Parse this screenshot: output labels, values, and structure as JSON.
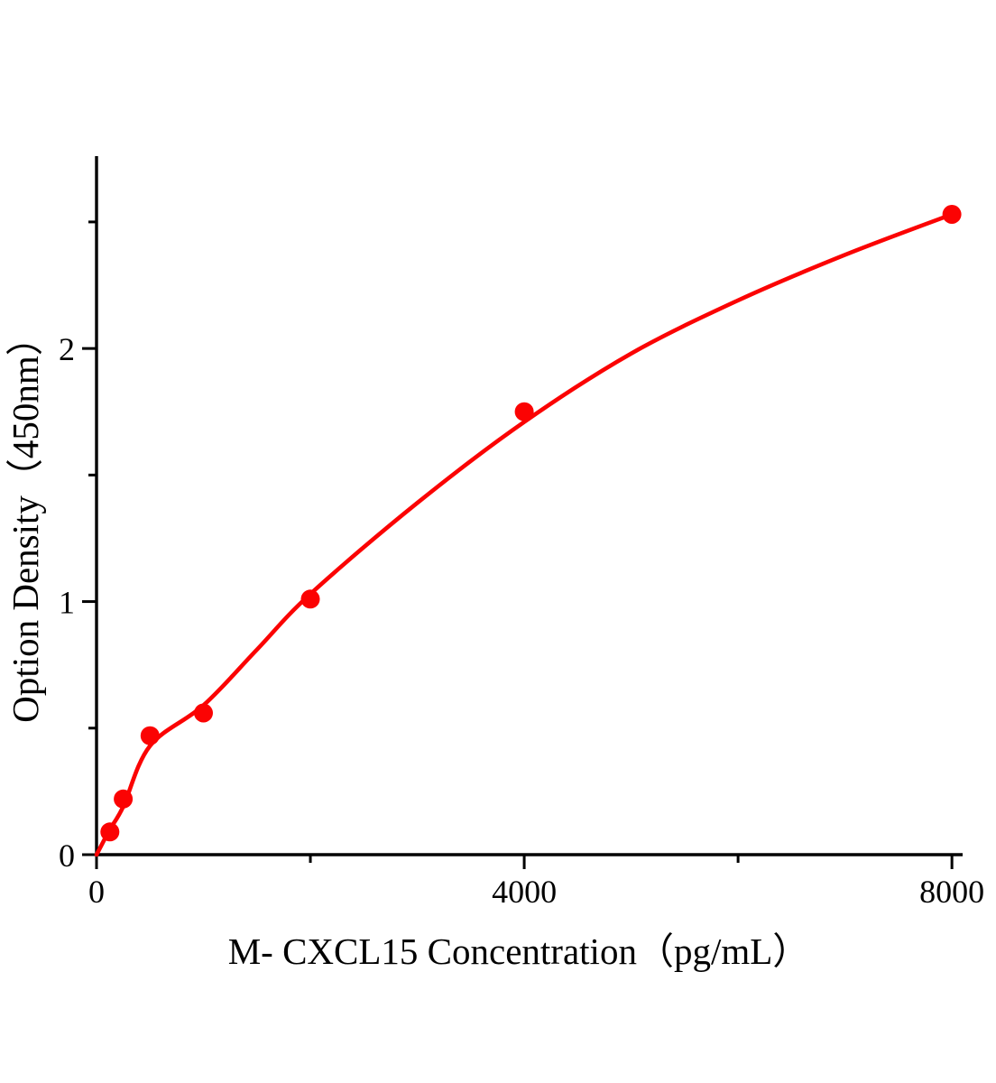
{
  "chart_data": {
    "type": "scatter",
    "title": "",
    "xlabel": "M- CXCL15 Concentration（pg/mL）",
    "ylabel": "Option Density（450nm）",
    "xlim": [
      0,
      8100
    ],
    "ylim": [
      0,
      2.76
    ],
    "grid": false,
    "legend": "none",
    "axis_color": "#000000",
    "background_color": "#ffffff",
    "x_ticks": {
      "major": [
        {
          "value": 0,
          "label": "0"
        },
        {
          "value": 4000,
          "label": "4000"
        },
        {
          "value": 8000,
          "label": "8000"
        }
      ],
      "minor": [
        2000,
        6000
      ]
    },
    "y_ticks": {
      "major": [
        {
          "value": 0,
          "label": "0"
        },
        {
          "value": 1,
          "label": "1"
        },
        {
          "value": 2,
          "label": "2"
        }
      ],
      "minor": [
        0.5,
        1.5,
        2.5
      ]
    },
    "series": [
      {
        "name": "standard-points",
        "type": "scatter",
        "marker": "circle",
        "color": "#fb0303",
        "points": [
          {
            "x": 125,
            "y": 0.09
          },
          {
            "x": 250,
            "y": 0.22
          },
          {
            "x": 500,
            "y": 0.47
          },
          {
            "x": 1000,
            "y": 0.56
          },
          {
            "x": 2000,
            "y": 1.01
          },
          {
            "x": 4000,
            "y": 1.75
          },
          {
            "x": 8000,
            "y": 2.53
          }
        ]
      },
      {
        "name": "fitted-curve",
        "type": "line",
        "color": "#fb0303",
        "points": [
          {
            "x": 0,
            "y": 0.0
          },
          {
            "x": 125,
            "y": 0.1
          },
          {
            "x": 250,
            "y": 0.19
          },
          {
            "x": 500,
            "y": 0.43
          },
          {
            "x": 1000,
            "y": 0.59
          },
          {
            "x": 1500,
            "y": 0.81
          },
          {
            "x": 2000,
            "y": 1.03
          },
          {
            "x": 3000,
            "y": 1.39
          },
          {
            "x": 4000,
            "y": 1.71
          },
          {
            "x": 5000,
            "y": 1.98
          },
          {
            "x": 6000,
            "y": 2.19
          },
          {
            "x": 7000,
            "y": 2.37
          },
          {
            "x": 8000,
            "y": 2.53
          }
        ]
      }
    ]
  }
}
